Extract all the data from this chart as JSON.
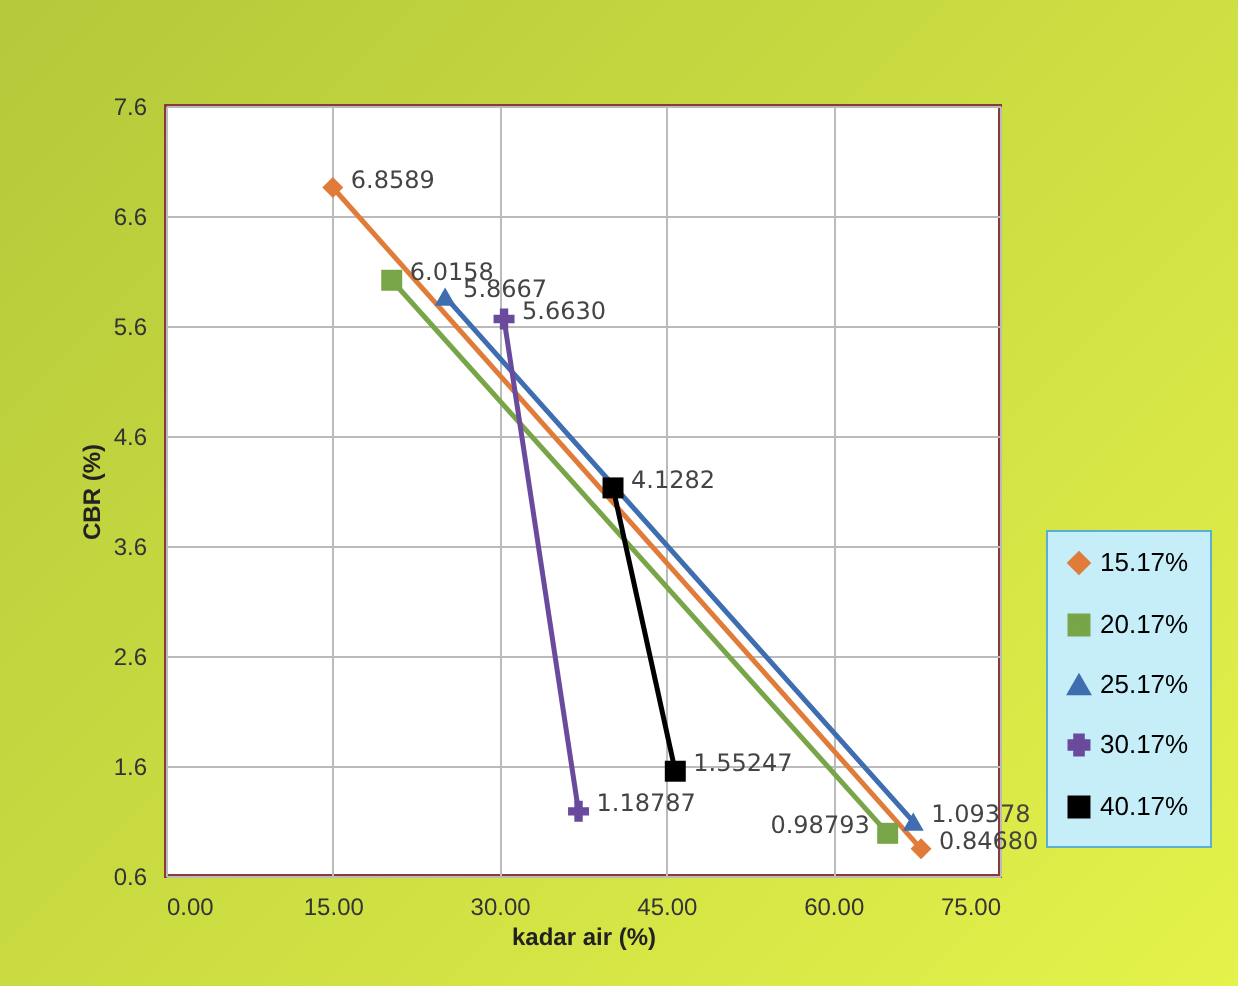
{
  "chart_data": {
    "type": "line",
    "xlabel": "kadar air (%)",
    "ylabel": "CBR (%)",
    "xlim": [
      0,
      75
    ],
    "xticks": [
      {
        "value": 0,
        "label": "0.00"
      },
      {
        "value": 15,
        "label": "15.00"
      },
      {
        "value": 30,
        "label": "30.00"
      },
      {
        "value": 45,
        "label": "45.00"
      },
      {
        "value": 60,
        "label": "60.00"
      },
      {
        "value": 75,
        "label": "75.00"
      }
    ],
    "ylim": [
      0.6,
      7.6
    ],
    "yticks": [
      0.6,
      1.6,
      2.6,
      3.6,
      4.6,
      5.6,
      6.6,
      7.6
    ],
    "grid": true,
    "legend": "right",
    "series": [
      {
        "name": "15.17%",
        "color": "#e07b39",
        "marker": "diamond",
        "x": [
          15.0,
          67.9
        ],
        "values": [
          6.8589,
          0.8468
        ],
        "value_labels": [
          "6.8589",
          "0.84680"
        ]
      },
      {
        "name": "20.17%",
        "color": "#77a548",
        "marker": "square",
        "x": [
          20.3,
          64.9
        ],
        "values": [
          6.0158,
          0.98793
        ],
        "value_labels": [
          "6.0158",
          "0.98793"
        ]
      },
      {
        "name": "25.17%",
        "color": "#3e6eb0",
        "marker": "triangle",
        "x": [
          25.1,
          67.2
        ],
        "values": [
          5.8667,
          1.09378
        ],
        "value_labels": [
          "5.8667",
          "1.09378"
        ]
      },
      {
        "name": "30.17%",
        "color": "#6a4a9c",
        "marker": "cross",
        "x": [
          30.4,
          37.1
        ],
        "values": [
          5.663,
          1.18787
        ],
        "value_labels": [
          "5.6630",
          "1.18787"
        ]
      },
      {
        "name": "40.17%",
        "color": "#000000",
        "marker": "square",
        "x": [
          40.2,
          45.8
        ],
        "values": [
          4.1282,
          1.55247
        ],
        "value_labels": [
          "4.1282",
          "1.55247"
        ]
      }
    ]
  }
}
